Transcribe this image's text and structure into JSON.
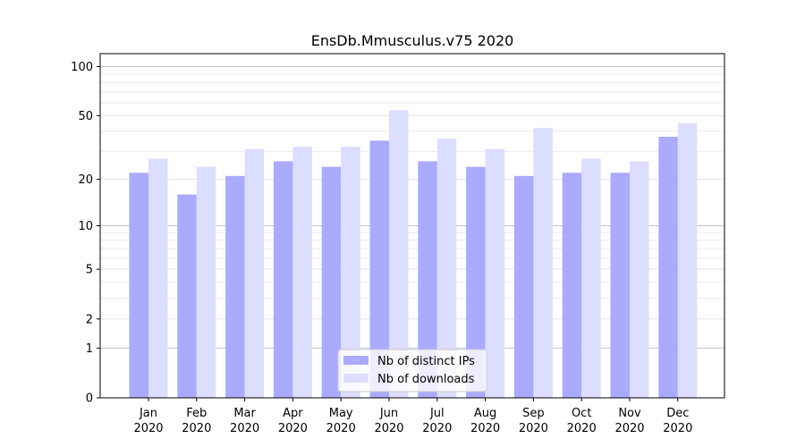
{
  "chart_data": {
    "type": "bar",
    "title": "EnsDb.Mmusculus.v75 2020",
    "categories": [
      [
        "Jan",
        "2020"
      ],
      [
        "Feb",
        "2020"
      ],
      [
        "Mar",
        "2020"
      ],
      [
        "Apr",
        "2020"
      ],
      [
        "May",
        "2020"
      ],
      [
        "Jun",
        "2020"
      ],
      [
        "Jul",
        "2020"
      ],
      [
        "Aug",
        "2020"
      ],
      [
        "Sep",
        "2020"
      ],
      [
        "Oct",
        "2020"
      ],
      [
        "Nov",
        "2020"
      ],
      [
        "Dec",
        "2020"
      ]
    ],
    "series": [
      {
        "name": "Nb of distinct IPs",
        "color": "#aaaaff",
        "values": [
          22,
          16,
          21,
          26,
          24,
          35,
          26,
          24,
          21,
          22,
          22,
          37
        ]
      },
      {
        "name": "Nb of downloads",
        "color": "#ddddff",
        "values": [
          27,
          24,
          31,
          32,
          32,
          54,
          36,
          31,
          42,
          27,
          26,
          45
        ]
      }
    ],
    "yscale": "log(1+y)",
    "ylim": [
      0,
      120
    ],
    "yticks": [
      0,
      1,
      2,
      5,
      10,
      20,
      50,
      100
    ],
    "ytick_labels": [
      "0",
      "1",
      "2",
      "5",
      "10",
      "20",
      "50",
      "100"
    ],
    "grid": true,
    "legend_position": "bottom-center"
  }
}
